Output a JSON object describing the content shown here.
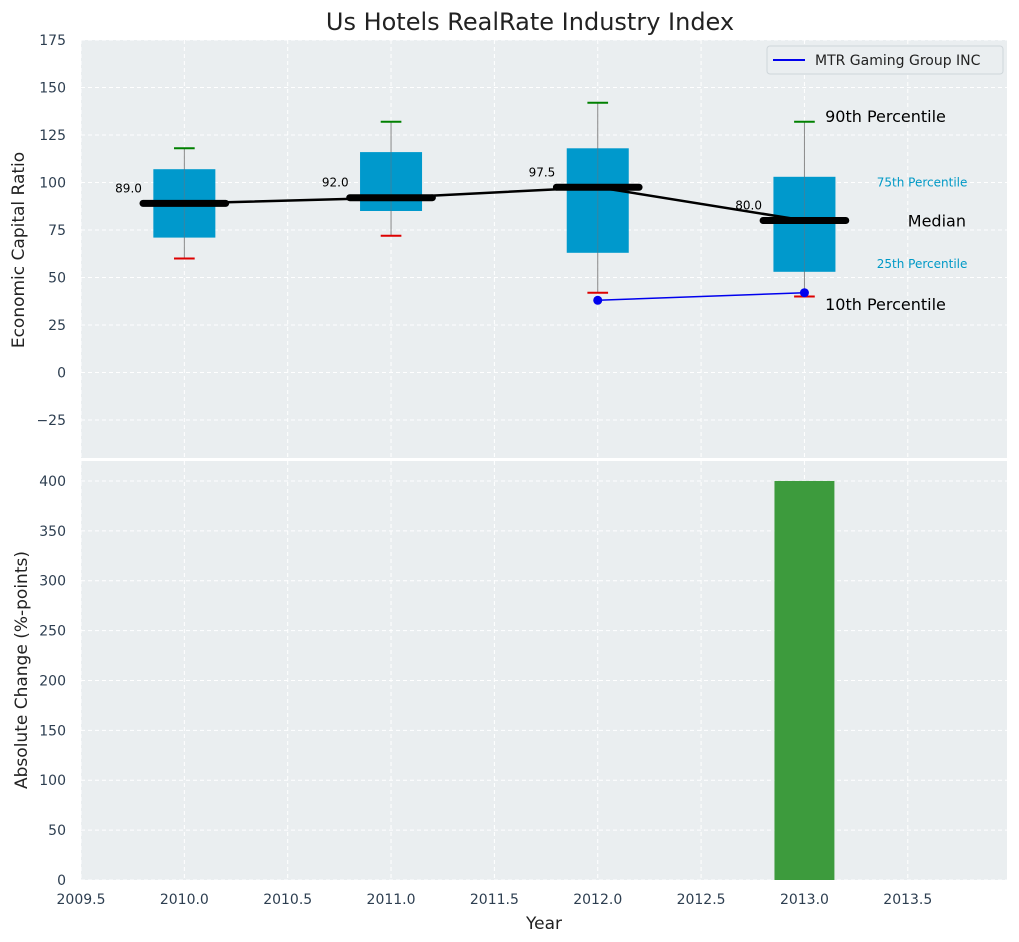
{
  "chart_data": [
    {
      "type": "box",
      "title": "Us Hotels RealRate Industry Index",
      "xlabel": "",
      "ylabel": "Economic Capital Ratio",
      "xlim": [
        2009.5,
        2013.98
      ],
      "ylim": [
        -45,
        175
      ],
      "yticks": [
        -25,
        0,
        25,
        50,
        75,
        100,
        125,
        150,
        175
      ],
      "ytick_labels": [
        "−25",
        "0",
        "25",
        "50",
        "75",
        "100",
        "125",
        "150",
        "175"
      ],
      "grid": true,
      "boxes": [
        {
          "x": 2010,
          "p10": 60,
          "p25": 71,
          "median": 89,
          "p75": 107,
          "p90": 118,
          "median_label": "89.0"
        },
        {
          "x": 2011,
          "p10": 72,
          "p25": 85,
          "median": 92,
          "p75": 116,
          "p90": 132,
          "median_label": "92.0"
        },
        {
          "x": 2012,
          "p10": 42,
          "p25": 63,
          "median": 97.5,
          "p75": 118,
          "p90": 142,
          "median_label": "97.5"
        },
        {
          "x": 2013,
          "p10": 40,
          "p25": 53,
          "median": 80,
          "p75": 103,
          "p90": 132,
          "median_label": "80.0"
        }
      ],
      "series": [
        {
          "name": "MTR Gaming Group INC",
          "color": "#0000ee",
          "x": [
            2012,
            2013
          ],
          "y": [
            38,
            42
          ]
        }
      ],
      "annotations": [
        {
          "text": "90th Percentile",
          "x": 2013.1,
          "y": 135,
          "style": "big"
        },
        {
          "text": "75th Percentile",
          "x": 2013.35,
          "y": 100,
          "style": "small"
        },
        {
          "text": "Median",
          "x": 2013.5,
          "y": 80,
          "style": "big"
        },
        {
          "text": "25th Percentile",
          "x": 2013.35,
          "y": 57,
          "style": "small"
        },
        {
          "text": "10th Percentile",
          "x": 2013.1,
          "y": 36,
          "style": "big"
        }
      ],
      "legend": {
        "position": "top-right",
        "entries": [
          "MTR Gaming Group INC"
        ]
      }
    },
    {
      "type": "bar",
      "xlabel": "Year",
      "ylabel": "Absolute Change (%-points)",
      "xlim": [
        2009.5,
        2013.98
      ],
      "ylim": [
        0,
        420
      ],
      "yticks": [
        0,
        50,
        100,
        150,
        200,
        250,
        300,
        350,
        400
      ],
      "xticks": [
        2009.5,
        2010.0,
        2010.5,
        2011.0,
        2011.5,
        2012.0,
        2012.5,
        2013.0,
        2013.5
      ],
      "xtick_labels": [
        "2009.5",
        "2010.0",
        "2010.5",
        "2011.0",
        "2011.5",
        "2012.0",
        "2012.5",
        "2013.0",
        "2013.5"
      ],
      "grid": true,
      "bars": [
        {
          "x": 2013,
          "value": 400,
          "color": "#3d9b3d"
        }
      ]
    }
  ],
  "colors": {
    "panel_bg": "#eaeef0",
    "box_fill": "#0099cc",
    "whisker_top": "#008000",
    "whisker_bottom": "#dd0000",
    "median_line": "#000000",
    "bar_fill": "#3d9b3d"
  }
}
